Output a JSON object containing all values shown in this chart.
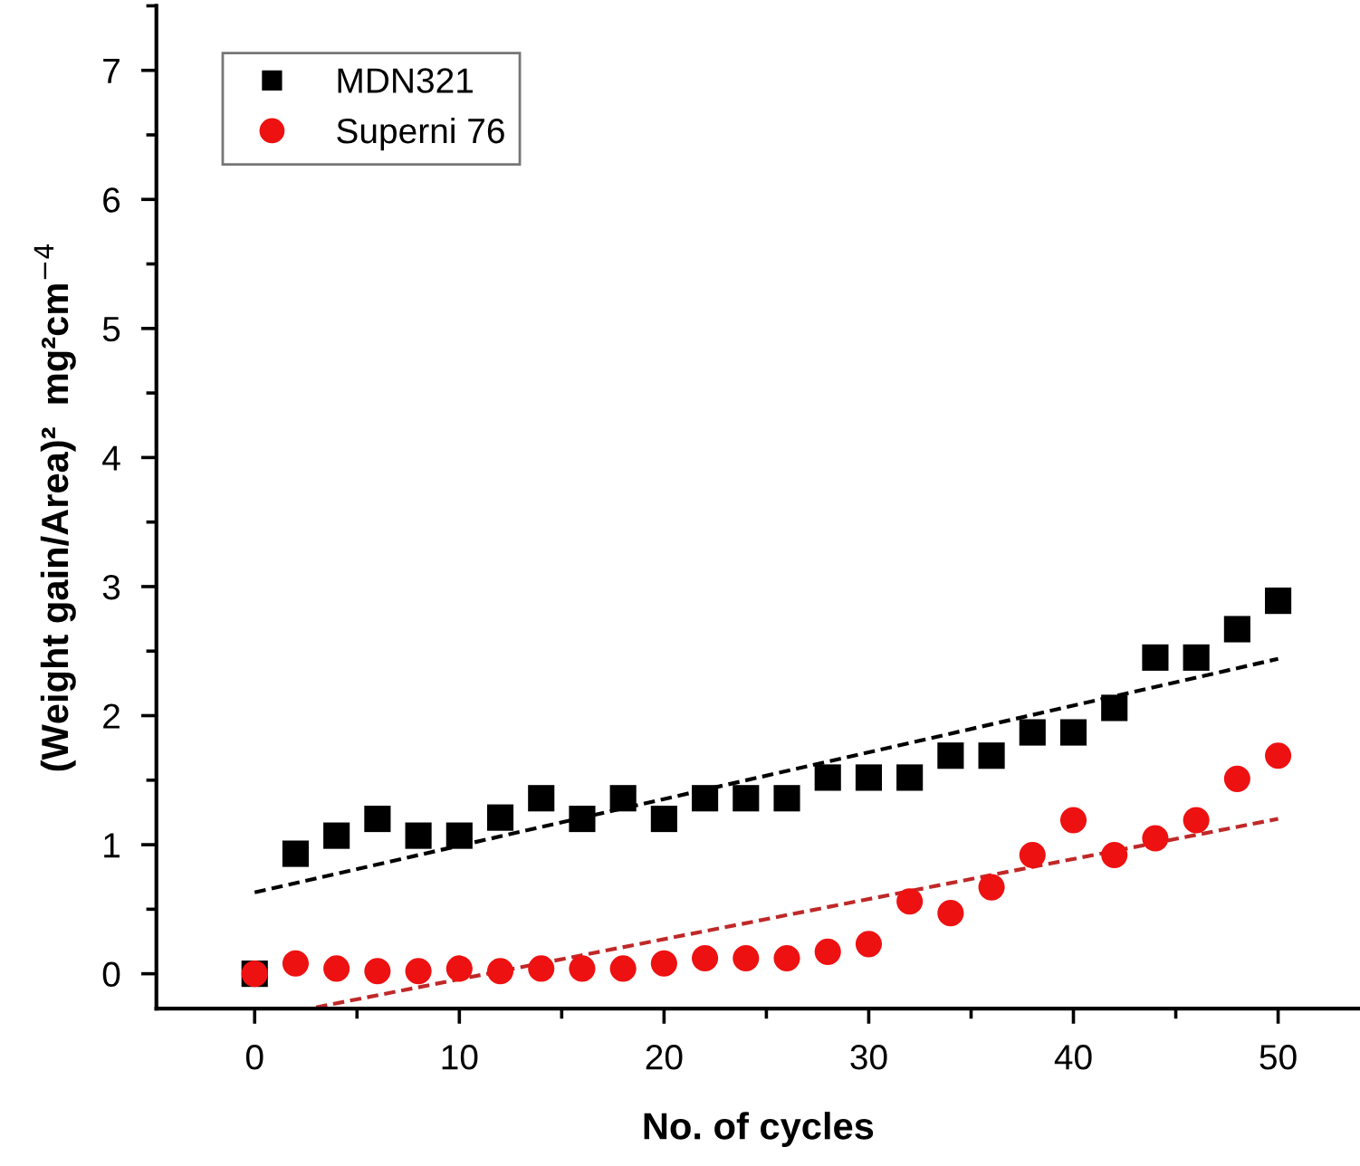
{
  "chart_data": {
    "type": "scatter",
    "xlabel": "No. of cycles",
    "ylabel": "(Weight gain/Area)²  mg²cm$^{−4}$",
    "x": [
      0,
      2,
      4,
      6,
      8,
      10,
      12,
      14,
      16,
      18,
      20,
      22,
      24,
      26,
      28,
      30,
      32,
      34,
      36,
      38,
      40,
      42,
      44,
      46,
      48,
      50
    ],
    "series": [
      {
        "name": "MDN321",
        "color": "#000000",
        "marker": "square",
        "values": [
          0,
          0.93,
          1.07,
          1.2,
          1.07,
          1.07,
          1.21,
          1.36,
          1.2,
          1.36,
          1.2,
          1.36,
          1.36,
          1.36,
          1.52,
          1.52,
          1.52,
          1.69,
          1.69,
          1.87,
          1.87,
          2.06,
          2.45,
          2.45,
          2.67,
          2.89
        ]
      },
      {
        "name": "Superni 76",
        "color": "#ee1111",
        "marker": "circle",
        "values": [
          0,
          0.08,
          0.04,
          0.02,
          0.02,
          0.04,
          0.02,
          0.04,
          0.04,
          0.04,
          0.08,
          0.12,
          0.12,
          0.12,
          0.17,
          0.23,
          0.56,
          0.47,
          0.67,
          0.92,
          1.19,
          0.92,
          1.05,
          1.19,
          1.51,
          1.69
        ]
      },
      {
        "type": "line",
        "color": "#000000",
        "line_style": "dashed",
        "marker": "none",
        "x": [
          0,
          50
        ],
        "values": [
          0.63,
          2.44
        ]
      },
      {
        "type": "line",
        "color": "#c02828",
        "line_style": "dashed",
        "marker": "none",
        "x": [
          3,
          50
        ],
        "values": [
          -0.26,
          1.2
        ]
      }
    ],
    "xlim": [
      -4.8,
      54
    ],
    "xticks": [
      0,
      10,
      20,
      30,
      40,
      50
    ],
    "ylim": [
      -0.27,
      7.5
    ],
    "yticks": [
      0,
      1,
      2,
      3,
      4,
      5,
      6,
      7
    ],
    "legend": "top left",
    "grid": false
  }
}
